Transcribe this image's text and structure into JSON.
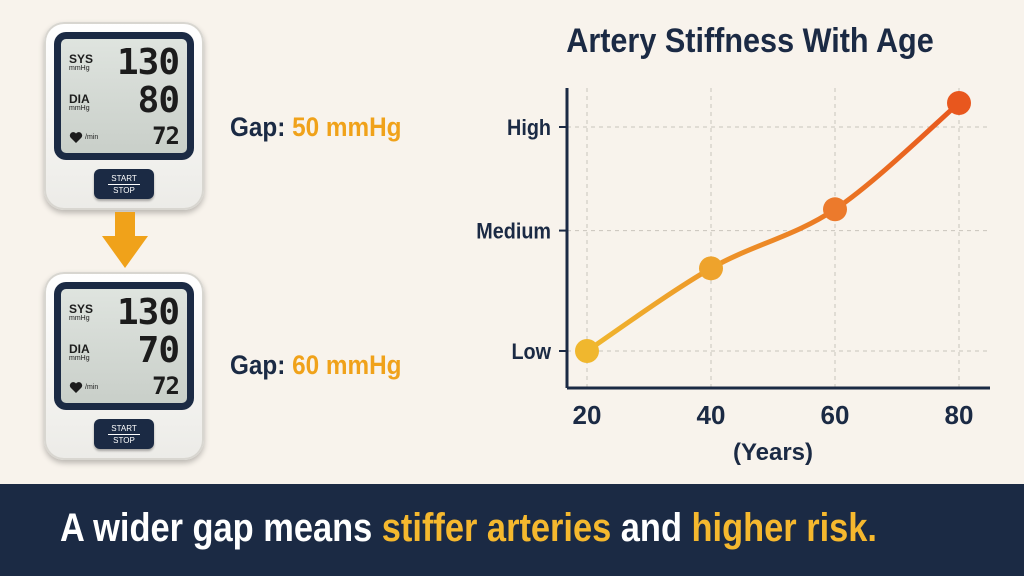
{
  "monitors": [
    {
      "sys_label": "SYS",
      "sys_unit": "mmHg",
      "sys_value": "130",
      "dia_label": "DIA",
      "dia_unit": "mmHg",
      "dia_value": "80",
      "pulse_unit": "/min",
      "pulse_value": "72",
      "start_label": "START",
      "stop_label": "STOP",
      "gap_label": "Gap:",
      "gap_value": "50 mmHg"
    },
    {
      "sys_label": "SYS",
      "sys_unit": "mmHg",
      "sys_value": "130",
      "dia_label": "DIA",
      "dia_unit": "mmHg",
      "dia_value": "70",
      "pulse_unit": "/min",
      "pulse_value": "72",
      "start_label": "START",
      "stop_label": "STOP",
      "gap_label": "Gap:",
      "gap_value": "60 mmHg"
    }
  ],
  "icons": {
    "pulse": "heart-icon",
    "transition": "arrow-down-icon"
  },
  "chart_data": {
    "type": "line",
    "title": "Artery Stiffness With Age",
    "xlabel": "(Years)",
    "ylabel": "",
    "x": [
      20,
      40,
      60,
      80
    ],
    "y_categories": [
      "Low",
      "Medium",
      "High"
    ],
    "y": [
      0,
      0.35,
      0.6,
      1.05
    ],
    "ylim": [
      0,
      1
    ],
    "grid": true,
    "point_colors": [
      "#f0b72e",
      "#eea32c",
      "#ec7a2c",
      "#e8571e"
    ],
    "line_gradient": [
      "#f0b72e",
      "#e8571e"
    ]
  },
  "banner": {
    "part1": "A wider gap means ",
    "highlight1": "stiffer arteries",
    "part2": " and ",
    "highlight2": "higher risk."
  },
  "colors": {
    "navy": "#1b2a44",
    "gold": "#f0a21a",
    "background": "#f8f3ec"
  }
}
